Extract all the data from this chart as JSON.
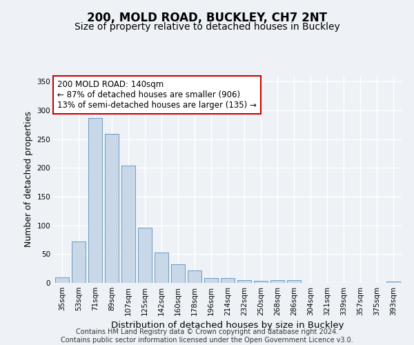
{
  "title": "200, MOLD ROAD, BUCKLEY, CH7 2NT",
  "subtitle": "Size of property relative to detached houses in Buckley",
  "xlabel": "Distribution of detached houses by size in Buckley",
  "ylabel": "Number of detached properties",
  "categories": [
    "35sqm",
    "53sqm",
    "71sqm",
    "89sqm",
    "107sqm",
    "125sqm",
    "142sqm",
    "160sqm",
    "178sqm",
    "196sqm",
    "214sqm",
    "232sqm",
    "250sqm",
    "268sqm",
    "286sqm",
    "304sqm",
    "321sqm",
    "339sqm",
    "357sqm",
    "375sqm",
    "393sqm"
  ],
  "values": [
    10,
    72,
    287,
    259,
    204,
    96,
    53,
    33,
    22,
    9,
    8,
    5,
    4,
    5,
    5,
    0,
    0,
    0,
    0,
    0,
    3
  ],
  "bar_color": "#c8d8e8",
  "bar_edge_color": "#5b8db8",
  "background_color": "#eef2f7",
  "grid_color": "#ffffff",
  "annotation_text": "200 MOLD ROAD: 140sqm\n← 87% of detached houses are smaller (906)\n13% of semi-detached houses are larger (135) →",
  "annotation_box_color": "#ffffff",
  "annotation_box_edge_color": "#cc0000",
  "ylim": [
    0,
    360
  ],
  "yticks": [
    0,
    50,
    100,
    150,
    200,
    250,
    300,
    350
  ],
  "footer_line1": "Contains HM Land Registry data © Crown copyright and database right 2024.",
  "footer_line2": "Contains public sector information licensed under the Open Government Licence v3.0.",
  "title_fontsize": 12,
  "subtitle_fontsize": 10,
  "xlabel_fontsize": 9.5,
  "ylabel_fontsize": 9,
  "tick_fontsize": 7.5,
  "annotation_fontsize": 8.5,
  "footer_fontsize": 7
}
